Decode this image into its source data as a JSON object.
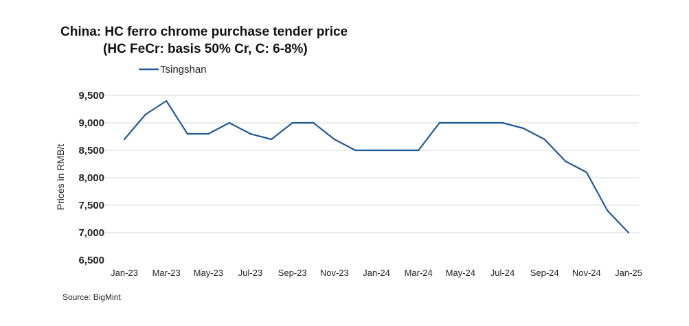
{
  "chart_data": {
    "type": "line",
    "title": "China: HC ferro chrome purchase tender price",
    "subtitle": "(HC FeCr: basis 50% Cr, C: 6-8%)",
    "ylabel": "Prices in RMB/t",
    "xlabel": "",
    "ylim": [
      6500,
      9500
    ],
    "yticks": [
      "9,500",
      "9,000",
      "8,500",
      "8,000",
      "7,500",
      "7,000",
      "6,500"
    ],
    "ytick_values": [
      9500,
      9000,
      8500,
      8000,
      7500,
      7000,
      6500
    ],
    "x": [
      "Jan-23",
      "Feb-23",
      "Mar-23",
      "Apr-23",
      "May-23",
      "Jun-23",
      "Jul-23",
      "Aug-23",
      "Sep-23",
      "Oct-23",
      "Nov-23",
      "Dec-23",
      "Jan-24",
      "Feb-24",
      "Mar-24",
      "Apr-24",
      "May-24",
      "Jun-24",
      "Jul-24",
      "Aug-24",
      "Sep-24",
      "Oct-24",
      "Nov-24",
      "Dec-24",
      "Jan-25"
    ],
    "xtick_labels": [
      "Jan-23",
      "Mar-23",
      "May-23",
      "Jul-23",
      "Sep-23",
      "Nov-23",
      "Jan-24",
      "Mar-24",
      "May-24",
      "Jul-24",
      "Sep-24",
      "Nov-24",
      "Jan-25"
    ],
    "series": [
      {
        "name": "Tsingshan",
        "color": "#1f5a96",
        "values": [
          8700,
          9150,
          9400,
          8800,
          8800,
          9000,
          8800,
          8700,
          9000,
          9000,
          8700,
          8500,
          8500,
          8500,
          8500,
          9000,
          9000,
          9000,
          9000,
          8900,
          8700,
          8300,
          8100,
          7400,
          7000
        ]
      }
    ],
    "grid": true,
    "legend_position": "top-left",
    "source": "Source: BigMint"
  }
}
